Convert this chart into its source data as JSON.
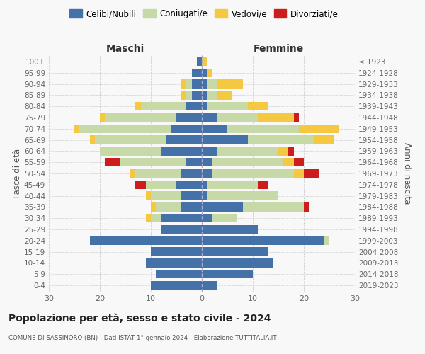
{
  "age_groups": [
    "0-4",
    "5-9",
    "10-14",
    "15-19",
    "20-24",
    "25-29",
    "30-34",
    "35-39",
    "40-44",
    "45-49",
    "50-54",
    "55-59",
    "60-64",
    "65-69",
    "70-74",
    "75-79",
    "80-84",
    "85-89",
    "90-94",
    "95-99",
    "100+"
  ],
  "birth_years": [
    "2019-2023",
    "2014-2018",
    "2009-2013",
    "2004-2008",
    "1999-2003",
    "1994-1998",
    "1989-1993",
    "1984-1988",
    "1979-1983",
    "1974-1978",
    "1969-1973",
    "1964-1968",
    "1959-1963",
    "1954-1958",
    "1949-1953",
    "1944-1948",
    "1939-1943",
    "1934-1938",
    "1929-1933",
    "1924-1928",
    "≤ 1923"
  ],
  "maschi": {
    "celibi": [
      10,
      9,
      11,
      10,
      22,
      8,
      8,
      4,
      4,
      5,
      4,
      3,
      8,
      7,
      6,
      5,
      3,
      2,
      2,
      2,
      1
    ],
    "coniugati": [
      0,
      0,
      0,
      0,
      0,
      0,
      2,
      5,
      6,
      6,
      9,
      13,
      12,
      14,
      18,
      14,
      9,
      1,
      1,
      0,
      0
    ],
    "vedovi": [
      0,
      0,
      0,
      0,
      0,
      0,
      1,
      1,
      1,
      0,
      1,
      0,
      0,
      1,
      1,
      1,
      1,
      1,
      1,
      0,
      0
    ],
    "divorziati": [
      0,
      0,
      0,
      0,
      0,
      0,
      0,
      0,
      0,
      2,
      0,
      3,
      0,
      0,
      0,
      0,
      0,
      0,
      0,
      0,
      0
    ]
  },
  "femmine": {
    "nubili": [
      3,
      10,
      14,
      13,
      24,
      11,
      2,
      8,
      1,
      1,
      2,
      2,
      3,
      9,
      5,
      3,
      1,
      1,
      1,
      1,
      0
    ],
    "coniugate": [
      0,
      0,
      0,
      0,
      1,
      0,
      5,
      12,
      14,
      10,
      16,
      14,
      12,
      13,
      14,
      8,
      8,
      2,
      2,
      0,
      0
    ],
    "vedove": [
      0,
      0,
      0,
      0,
      0,
      0,
      0,
      0,
      0,
      0,
      2,
      2,
      2,
      4,
      8,
      7,
      4,
      3,
      5,
      1,
      1
    ],
    "divorziate": [
      0,
      0,
      0,
      0,
      0,
      0,
      0,
      1,
      0,
      2,
      3,
      2,
      1,
      0,
      0,
      1,
      0,
      0,
      0,
      0,
      0
    ]
  },
  "colors": {
    "celibi": "#4472a8",
    "coniugati": "#c8d9a8",
    "vedovi": "#f5c842",
    "divorziati": "#cc1c1c"
  },
  "legend_labels": [
    "Celibi/Nubili",
    "Coniugati/e",
    "Vedovi/e",
    "Divorziati/e"
  ],
  "legend_colors": [
    "#4472a8",
    "#c8d9a8",
    "#f5c842",
    "#cc1c1c"
  ],
  "title": "Popolazione per età, sesso e stato civile - 2024",
  "subtitle": "COMUNE DI SASSINORO (BN) - Dati ISTAT 1° gennaio 2024 - Elaborazione TUTTITALIA.IT",
  "xlabel_left": "Maschi",
  "xlabel_right": "Femmine",
  "ylabel_left": "Fasce di età",
  "ylabel_right": "Anni di nascita",
  "xlim": 30,
  "bg_color": "#f8f8f8",
  "grid_color": "#cccccc"
}
